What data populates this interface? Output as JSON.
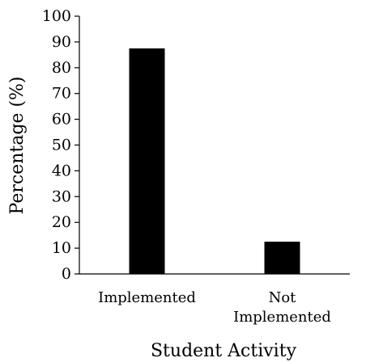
{
  "chart_data": {
    "type": "bar",
    "title": "",
    "categories": [
      [
        "Implemented"
      ],
      [
        "Not",
        "Implemented"
      ]
    ],
    "values": [
      87.5,
      12.5
    ],
    "xlabel": "Student Activity",
    "ylabel": "Percentage (%)",
    "ylim": [
      0,
      100
    ],
    "yticks": [
      0,
      10,
      20,
      30,
      40,
      50,
      60,
      70,
      80,
      90,
      100
    ],
    "grid": false,
    "legend": "none",
    "bar_color": "#000000"
  }
}
